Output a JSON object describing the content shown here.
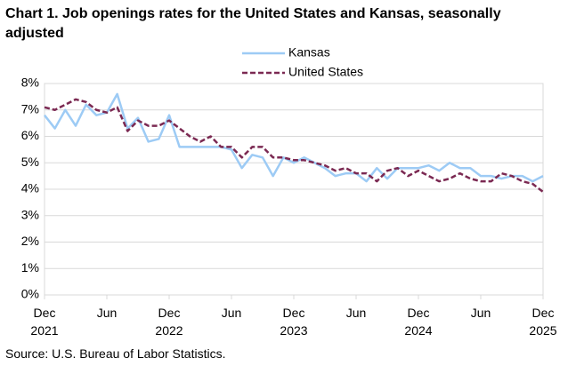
{
  "chart_data": {
    "type": "line",
    "title": "Chart 1. Job openings rates for the United States and Kansas, seasonally adjusted",
    "source": "Source: U.S. Bureau of Labor Statistics.",
    "categories": [
      "Dec 2021",
      null,
      null,
      null,
      null,
      null,
      "Jun",
      null,
      null,
      null,
      null,
      null,
      "Dec 2022",
      null,
      null,
      null,
      null,
      null,
      "Jun",
      null,
      null,
      null,
      null,
      null,
      "Dec 2023",
      null,
      null,
      null,
      null,
      null,
      "Jun",
      null,
      null,
      null,
      null,
      null,
      "Dec 2024",
      null,
      null,
      null,
      null,
      null,
      "Jun",
      null,
      null,
      null,
      null,
      null,
      "Dec 2025"
    ],
    "series": [
      {
        "name": "Kansas",
        "color": "#9dcbf5",
        "dash": false,
        "values": [
          6.8,
          6.3,
          7.0,
          6.4,
          7.2,
          6.8,
          6.9,
          7.6,
          6.3,
          6.7,
          5.8,
          5.9,
          6.8,
          5.6,
          5.6,
          5.6,
          5.6,
          5.6,
          5.5,
          4.8,
          5.3,
          5.2,
          4.5,
          5.2,
          5.0,
          5.2,
          5.0,
          4.8,
          4.5,
          4.6,
          4.6,
          4.3,
          4.8,
          4.4,
          4.8,
          4.8,
          4.8,
          4.9,
          4.7,
          5.0,
          4.8,
          4.8,
          4.5,
          4.5,
          4.4,
          4.5,
          4.5,
          4.3,
          4.5
        ]
      },
      {
        "name": "United States",
        "color": "#7b2952",
        "dash": true,
        "values": [
          7.1,
          7.0,
          7.2,
          7.4,
          7.3,
          7.0,
          6.9,
          7.1,
          6.2,
          6.6,
          6.4,
          6.4,
          6.6,
          6.3,
          6.0,
          5.8,
          6.0,
          5.6,
          5.6,
          5.2,
          5.6,
          5.6,
          5.2,
          5.2,
          5.1,
          5.1,
          5.0,
          4.9,
          4.7,
          4.8,
          4.6,
          4.6,
          4.3,
          4.7,
          4.8,
          4.5,
          4.7,
          4.5,
          4.3,
          4.4,
          4.6,
          4.4,
          4.3,
          4.3,
          4.6,
          4.5,
          4.3,
          4.2,
          3.9
        ]
      }
    ],
    "ylim": [
      0,
      8
    ],
    "yticks": [
      {
        "value": 0,
        "label": "0%"
      },
      {
        "value": 1,
        "label": "1%"
      },
      {
        "value": 2,
        "label": "2%"
      },
      {
        "value": 3,
        "label": "3%"
      },
      {
        "value": 4,
        "label": "4%"
      },
      {
        "value": 5,
        "label": "5%"
      },
      {
        "value": 6,
        "label": "6%"
      },
      {
        "value": 7,
        "label": "7%"
      },
      {
        "value": 8,
        "label": "8%"
      }
    ],
    "grid": true
  }
}
